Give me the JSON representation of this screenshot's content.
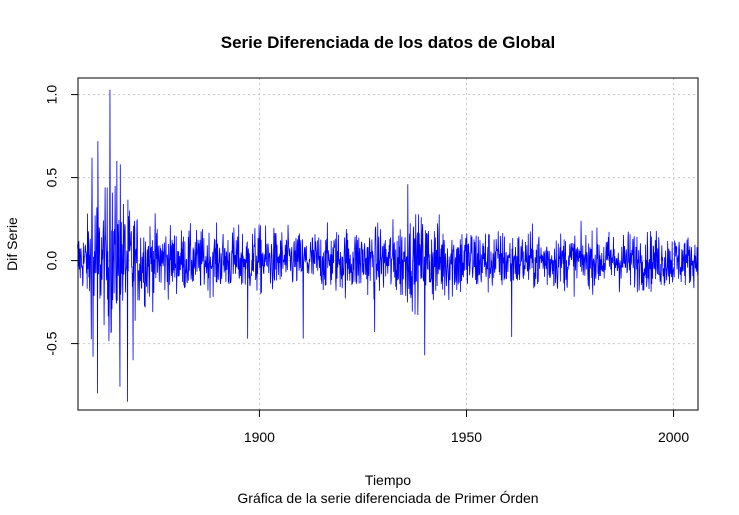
{
  "chart_data": {
    "type": "line",
    "title": "Serie Diferenciada de los datos de Global",
    "xlabel": "Tiempo",
    "subtitle": "Gráfica de la serie diferenciada de Primer Órden",
    "ylabel": "Dif Serie",
    "xlim": [
      1856.2,
      2005.9
    ],
    "ylim": [
      -0.9,
      1.1
    ],
    "x_ticks": [
      1900,
      1950,
      2000
    ],
    "x_tick_labels": [
      "1900",
      "1950",
      "2000"
    ],
    "y_ticks": [
      -0.5,
      0.0,
      0.5,
      1.0
    ],
    "y_tick_labels": [
      "-0.5",
      "0.0",
      "0.5",
      "1.0"
    ],
    "grid": true,
    "series": [
      {
        "color": "#0000ff",
        "frequency": "monthly",
        "start": 1856.08,
        "end": 2005.92,
        "envelope_by_year": {
          "x": [
            1856,
            1858,
            1860,
            1862,
            1864,
            1866,
            1868,
            1870,
            1875,
            1880,
            1890,
            1900,
            1910,
            1920,
            1930,
            1935,
            1940,
            1950,
            1960,
            1970,
            1980,
            1990,
            2000,
            2005
          ],
          "upper": [
            0.32,
            0.35,
            0.72,
            0.55,
            1.02,
            0.45,
            0.42,
            0.45,
            0.4,
            0.35,
            0.32,
            0.25,
            0.3,
            0.26,
            0.3,
            0.45,
            0.36,
            0.3,
            0.3,
            0.3,
            0.3,
            0.32,
            0.3,
            0.28
          ],
          "lower": [
            -0.35,
            -0.3,
            -0.78,
            -0.55,
            -0.74,
            -0.76,
            -0.85,
            -0.55,
            -0.4,
            -0.3,
            -0.3,
            -0.45,
            -0.27,
            -0.42,
            -0.4,
            -0.43,
            -0.57,
            -0.45,
            -0.3,
            -0.3,
            -0.26,
            -0.3,
            -0.27,
            -0.2
          ]
        },
        "extremes": [
          {
            "x": 1863.9,
            "y": 1.03
          },
          {
            "x": 1861.0,
            "y": 0.72
          },
          {
            "x": 1859.6,
            "y": 0.62
          },
          {
            "x": 1865.6,
            "y": 0.6
          },
          {
            "x": 1935.8,
            "y": 0.46
          },
          {
            "x": 1866.4,
            "y": 0.58
          },
          {
            "x": 1860.9,
            "y": -0.8
          },
          {
            "x": 1866.3,
            "y": -0.76
          },
          {
            "x": 1868.2,
            "y": -0.85
          },
          {
            "x": 1869.5,
            "y": -0.6
          },
          {
            "x": 1859.8,
            "y": -0.58
          },
          {
            "x": 1939.9,
            "y": -0.57
          },
          {
            "x": 1910.6,
            "y": -0.47
          },
          {
            "x": 1897.2,
            "y": -0.47
          },
          {
            "x": 1960.9,
            "y": -0.46
          },
          {
            "x": 1927.8,
            "y": -0.43
          }
        ]
      }
    ]
  }
}
